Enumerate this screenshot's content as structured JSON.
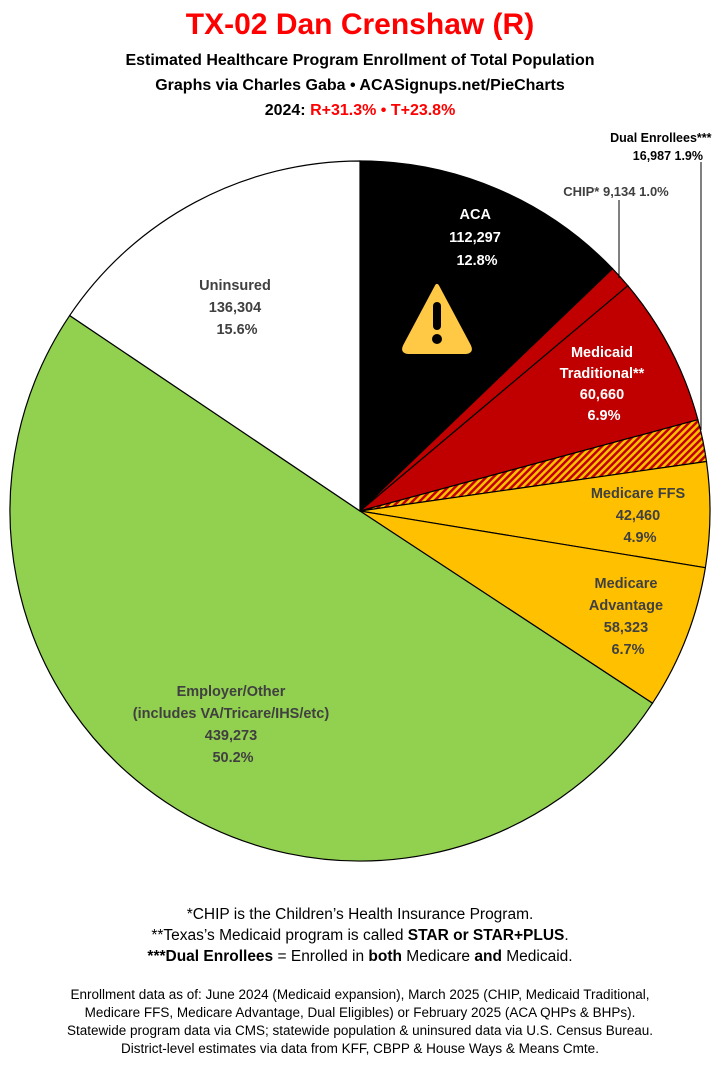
{
  "header": {
    "title": "TX-02 Dan Crenshaw (R)",
    "subtitle": "Estimated Healthcare Program Enrollment of Total Population",
    "credit": "Graphs via Charles Gaba  •  ACASignups.net/PieCharts",
    "year_label": "2024:",
    "margins": "R+31.3%  •  T+23.8%"
  },
  "chart_data": {
    "type": "pie",
    "start": "12 o'clock",
    "direction": "clockwise",
    "slices": [
      {
        "name": "ACA",
        "value": 112297,
        "percent": "12.8%",
        "value_label": "112,297",
        "color": "#000000",
        "icon": "warning-icon"
      },
      {
        "name": "CHIP*",
        "value": 9134,
        "percent": "1.0%",
        "value_label": "9,134",
        "color": "#c00000"
      },
      {
        "name": "Medicaid Traditional**",
        "value": 60660,
        "percent": "6.9%",
        "value_label": "60,660",
        "color": "#c00000"
      },
      {
        "name": "Dual Enrollees***",
        "value": 16987,
        "percent": "1.9%",
        "value_label": "16,987",
        "color": "hatch #c00000/#ffc000"
      },
      {
        "name": "Medicare FFS",
        "value": 42460,
        "percent": "4.9%",
        "value_label": "42,460",
        "color": "#ffc000"
      },
      {
        "name": "Medicare Advantage",
        "value": 58323,
        "percent": "6.7%",
        "value_label": "58,323",
        "color": "#ffc000"
      },
      {
        "name": "Employer/Other (includes VA/Tricare/IHS/etc)",
        "value": 439273,
        "percent": "50.2%",
        "value_label": "439,273",
        "color": "#92d050"
      },
      {
        "name": "Uninsured",
        "value": 136304,
        "percent": "15.6%",
        "value_label": "136,304",
        "color": "#ffffff"
      }
    ],
    "labels": {
      "aca": [
        "ACA",
        "112,297",
        "12.8%"
      ],
      "chip": "CHIP* 9,134 1.0%",
      "medicaid": [
        "Medicaid",
        "Traditional**",
        "60,660",
        "6.9%"
      ],
      "dual": [
        "Dual Enrollees***",
        "16,987 1.9%"
      ],
      "ffs": [
        "Medicare FFS",
        "42,460",
        "4.9%"
      ],
      "ma": [
        "Medicare",
        "Advantage",
        "58,323",
        "6.7%"
      ],
      "employer": [
        "Employer/Other",
        "(includes VA/Tricare/IHS/etc)",
        "439,273",
        "50.2%"
      ],
      "uninsured": [
        "Uninsured",
        "136,304",
        "15.6%"
      ]
    }
  },
  "notes": {
    "chip": "*CHIP is the Children’s Health Insurance Program.",
    "medicaid_pre": "**Texas’s Medicaid program is called ",
    "medicaid_bold": "STAR or STAR+PLUS",
    "medicaid_post": ".",
    "dual_bold": "***Dual Enrollees",
    "dual_mid": " = Enrolled in ",
    "dual_both": "both",
    "dual_mid2": " Medicare ",
    "dual_and": "and",
    "dual_post": " Medicaid."
  },
  "footer": [
    "Enrollment data as of: June 2024 (Medicaid expansion), March 2025 (CHIP, Medicaid Traditional,",
    "Medicare FFS, Medicare Advantage, Dual Eligibles) or February 2025 (ACA QHPs & BHPs).",
    "Statewide program data via CMS; statewide population & uninsured data via U.S. Census Bureau.",
    "District-level estimates via data from KFF, CBPP & House Ways & Means Cmte."
  ]
}
